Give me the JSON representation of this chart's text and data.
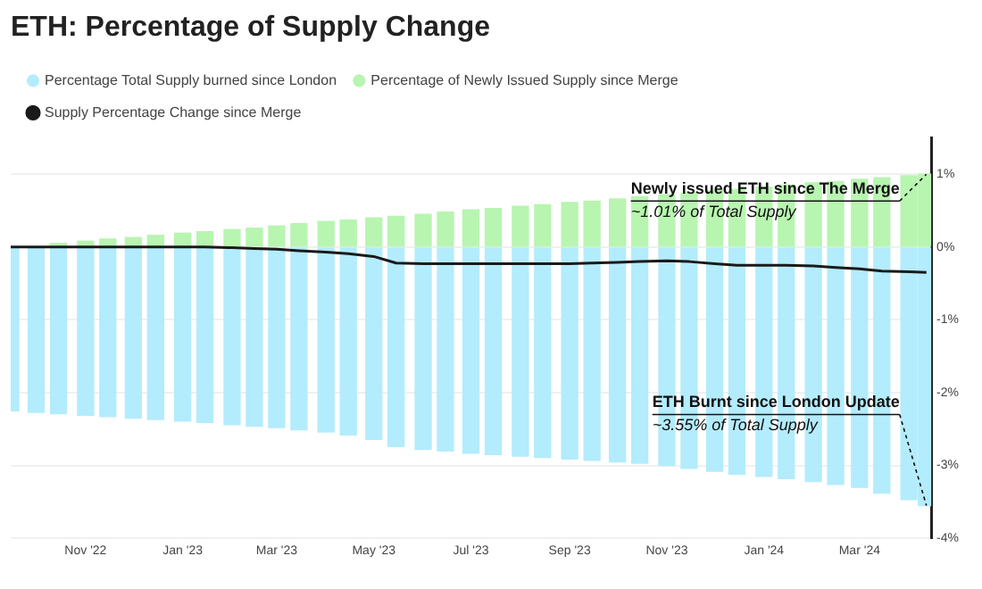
{
  "chart_data": {
    "type": "bar",
    "title": "ETH: Percentage of Supply Change",
    "stacked": true,
    "legend": "top",
    "grid": "y",
    "x": [
      "2022-09-15",
      "2022-10-01",
      "2022-10-15",
      "2022-11-01",
      "2022-11-15",
      "2022-12-01",
      "2022-12-15",
      "2023-01-01",
      "2023-01-15",
      "2023-02-01",
      "2023-02-15",
      "2023-03-01",
      "2023-03-15",
      "2023-04-01",
      "2023-04-15",
      "2023-05-01",
      "2023-05-15",
      "2023-06-01",
      "2023-06-15",
      "2023-07-01",
      "2023-07-15",
      "2023-08-01",
      "2023-08-15",
      "2023-09-01",
      "2023-09-15",
      "2023-10-01",
      "2023-10-15",
      "2023-11-01",
      "2023-11-15",
      "2023-12-01",
      "2023-12-15",
      "2024-01-01",
      "2024-01-15",
      "2024-02-01",
      "2024-02-15",
      "2024-03-01",
      "2024-03-15",
      "2024-04-01",
      "2024-04-12"
    ],
    "series": [
      {
        "name": "Percentage Total Supply burned since London",
        "color": "#b3ecfd",
        "values": [
          -2.25,
          -2.27,
          -2.29,
          -2.31,
          -2.33,
          -2.35,
          -2.37,
          -2.39,
          -2.41,
          -2.44,
          -2.46,
          -2.48,
          -2.51,
          -2.54,
          -2.58,
          -2.64,
          -2.74,
          -2.78,
          -2.8,
          -2.83,
          -2.85,
          -2.87,
          -2.89,
          -2.91,
          -2.93,
          -2.95,
          -2.97,
          -3.0,
          -3.04,
          -3.08,
          -3.12,
          -3.15,
          -3.18,
          -3.22,
          -3.26,
          -3.3,
          -3.38,
          -3.47,
          -3.55
        ]
      },
      {
        "name": "Percentage of Newly Issued Supply since Merge",
        "color": "#b8f5b0",
        "values": [
          0,
          null,
          0.05,
          0.08,
          0.11,
          0.13,
          0.16,
          0.19,
          0.21,
          0.24,
          0.26,
          0.29,
          0.32,
          0.35,
          0.37,
          0.4,
          0.42,
          0.45,
          0.48,
          0.51,
          0.53,
          0.56,
          0.58,
          0.61,
          0.63,
          0.66,
          0.69,
          0.72,
          0.74,
          0.77,
          0.79,
          0.82,
          0.85,
          0.88,
          0.9,
          0.93,
          0.95,
          0.98,
          1.0
        ]
      },
      {
        "name": "Supply Percentage Change since Merge",
        "color": "#1a1a1a",
        "type": "line",
        "values": [
          0,
          0,
          0,
          0,
          0,
          0,
          0,
          0,
          0,
          -0.01,
          -0.02,
          -0.03,
          -0.05,
          -0.07,
          -0.09,
          -0.13,
          -0.22,
          -0.23,
          -0.23,
          -0.23,
          -0.23,
          -0.23,
          -0.23,
          -0.23,
          -0.22,
          -0.21,
          -0.2,
          -0.19,
          -0.2,
          -0.23,
          -0.25,
          -0.25,
          -0.25,
          -0.26,
          -0.28,
          -0.3,
          -0.33,
          -0.34,
          -0.35
        ]
      }
    ],
    "xlim": [
      "2022-09-15",
      "2024-04-15"
    ],
    "xticks": [
      {
        "value": "2022-11-01",
        "label": "Nov '22"
      },
      {
        "value": "2023-01-01",
        "label": "Jan '23"
      },
      {
        "value": "2023-03-01",
        "label": "Mar '23"
      },
      {
        "value": "2023-05-01",
        "label": "May '23"
      },
      {
        "value": "2023-07-01",
        "label": "Jul '23"
      },
      {
        "value": "2023-09-01",
        "label": "Sep '23"
      },
      {
        "value": "2023-11-01",
        "label": "Nov '23"
      },
      {
        "value": "2024-01-01",
        "label": "Jan '24"
      },
      {
        "value": "2024-03-01",
        "label": "Mar '24"
      }
    ],
    "ylim": [
      -4,
      1.5
    ],
    "yticks": [
      {
        "value": 1,
        "label": "1%"
      },
      {
        "value": 0,
        "label": "0%"
      },
      {
        "value": -1,
        "label": "-1%"
      },
      {
        "value": -2,
        "label": "-2%"
      },
      {
        "value": -3,
        "label": "-3%"
      },
      {
        "value": -4,
        "label": "-4%"
      }
    ],
    "annotations": [
      {
        "text": "Newly issued ETH since The Merge\n~1.01% of Total Supply",
        "x": "2024-04-12",
        "y": 1.0
      },
      {
        "text": "ETH Burnt since London Update\n~3.55% of Total Supply",
        "x": "2024-04-12",
        "y": -3.55
      }
    ]
  }
}
